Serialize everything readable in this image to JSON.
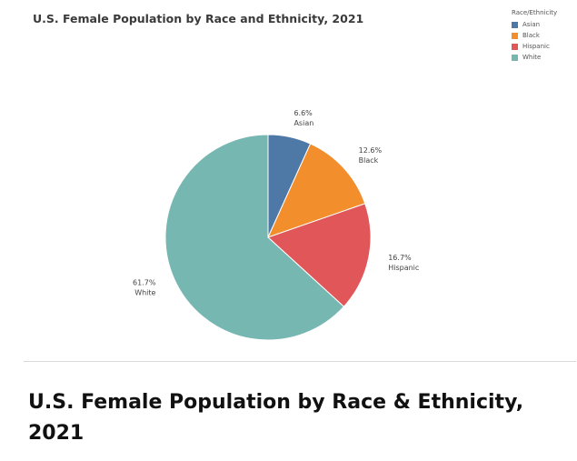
{
  "chart_data": {
    "type": "pie",
    "title": "U.S. Female Population by Race and Ethnicity, 2021",
    "legend_title": "Race/Ethnicity",
    "legend_placement": "top-right",
    "categories": [
      "Asian",
      "Black",
      "Hispanic",
      "White"
    ],
    "values": [
      6.6,
      12.6,
      16.7,
      61.7
    ],
    "value_labels": [
      "6.6%",
      "12.6%",
      "16.7%",
      "61.7%"
    ],
    "colors": [
      "#4e79a7",
      "#f28e2b",
      "#e15759",
      "#76b7b2"
    ]
  },
  "caption": "U.S. Female Population by Race & Ethnicity, 2021"
}
